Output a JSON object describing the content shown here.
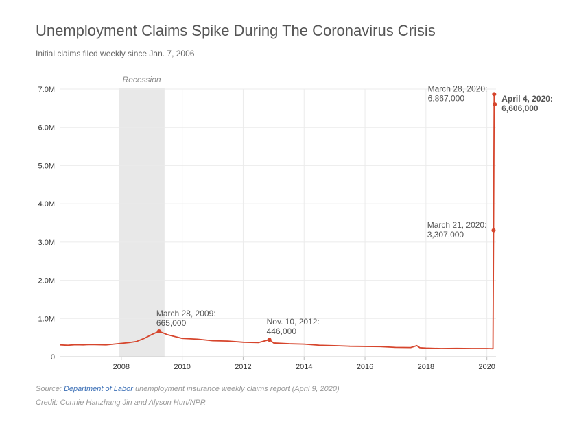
{
  "chart_data": {
    "type": "line",
    "title": "Unemployment Claims Spike During The Coronavirus Crisis",
    "subtitle": "Initial claims filed weekly since Jan. 7, 2006",
    "color": "#d6452c",
    "x": [
      2006.0,
      2006.25,
      2006.5,
      2006.75,
      2007.0,
      2007.25,
      2007.5,
      2007.75,
      2008.0,
      2008.25,
      2008.5,
      2008.75,
      2009.0,
      2009.24,
      2009.5,
      2009.75,
      2010.0,
      2010.5,
      2011.0,
      2011.5,
      2012.0,
      2012.5,
      2012.86,
      2013.0,
      2013.5,
      2014.0,
      2014.5,
      2015.0,
      2015.5,
      2016.0,
      2016.5,
      2017.0,
      2017.5,
      2017.7,
      2017.8,
      2018.0,
      2018.5,
      2019.0,
      2019.5,
      2020.0,
      2020.2,
      2020.22,
      2020.24,
      2020.26
    ],
    "values": [
      310000,
      300000,
      315000,
      310000,
      320000,
      315000,
      310000,
      330000,
      350000,
      370000,
      400000,
      480000,
      580000,
      665000,
      580000,
      530000,
      480000,
      460000,
      420000,
      410000,
      380000,
      370000,
      446000,
      360000,
      340000,
      330000,
      300000,
      290000,
      275000,
      270000,
      265000,
      245000,
      240000,
      290000,
      235000,
      225000,
      215000,
      220000,
      215000,
      215000,
      211000,
      3307000,
      6867000,
      6606000
    ],
    "xlim": [
      2006.0,
      2020.3
    ],
    "ylim": [
      0,
      7000000
    ],
    "xticks": [
      2008,
      2010,
      2012,
      2014,
      2016,
      2018,
      2020
    ],
    "yticks": [
      0,
      {
        "value": 1000000,
        "label": "1.0M"
      },
      {
        "value": 2000000,
        "label": "2.0M"
      },
      {
        "value": 3000000,
        "label": "3.0M"
      },
      {
        "value": 4000000,
        "label": "4.0M"
      },
      {
        "value": 5000000,
        "label": "5.0M"
      },
      {
        "value": 6000000,
        "label": "6.0M"
      },
      {
        "value": 7000000,
        "label": "7.0M"
      }
    ],
    "grid": true,
    "recession": {
      "label": "Recession",
      "start": 2007.92,
      "end": 2009.42
    },
    "annotations": [
      {
        "date": "March 28, 2009:",
        "value_label": "665,000",
        "x": 2009.24,
        "y": 665000,
        "position": "above",
        "bold": false
      },
      {
        "date": "Nov. 10, 2012:",
        "value_label": "446,000",
        "x": 2012.86,
        "y": 446000,
        "position": "above",
        "bold": false
      },
      {
        "date": "March 21, 2020:",
        "value_label": "3,307,000",
        "x": 2020.22,
        "y": 3307000,
        "position": "left",
        "bold": false
      },
      {
        "date": "March 28, 2020:",
        "value_label": "6,867,000",
        "x": 2020.24,
        "y": 6867000,
        "position": "left",
        "bold": false
      },
      {
        "date": "April 4, 2020:",
        "value_label": "6,606,000",
        "x": 2020.26,
        "y": 6606000,
        "position": "right",
        "bold": true
      }
    ],
    "source_prefix": "Source:",
    "source_link": "Department of Labor",
    "source_suffix": "unemployment insurance weekly claims report (April 9, 2020)",
    "credit": "Credit: Connie Hanzhang Jin and Alyson Hurt/NPR"
  }
}
